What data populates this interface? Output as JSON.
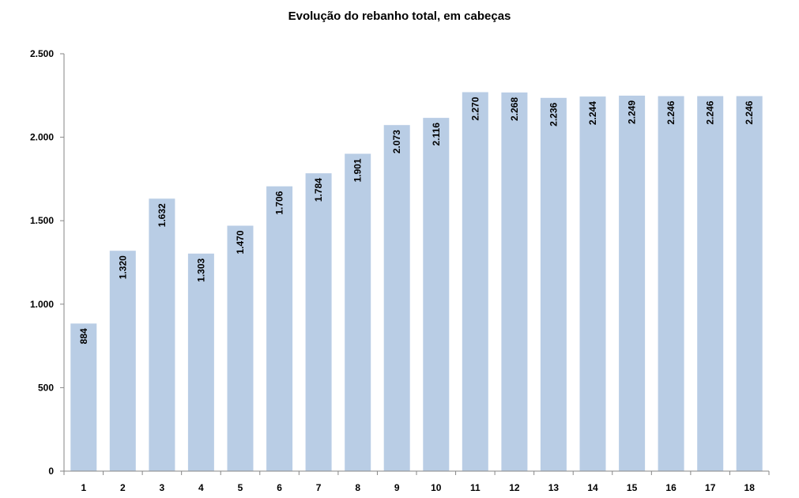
{
  "chart_data": {
    "type": "bar",
    "title": "Evolução do rebanho total, em cabeças",
    "xlabel": "",
    "ylabel": "",
    "categories": [
      "1",
      "2",
      "3",
      "4",
      "5",
      "6",
      "7",
      "8",
      "9",
      "10",
      "11",
      "12",
      "13",
      "14",
      "15",
      "16",
      "17",
      "18"
    ],
    "values": [
      884,
      1320,
      1632,
      1303,
      1470,
      1706,
      1784,
      1901,
      2073,
      2116,
      2270,
      2268,
      2236,
      2244,
      2249,
      2246,
      2246,
      2246
    ],
    "value_labels": [
      "884",
      "1.320",
      "1.632",
      "1.303",
      "1.470",
      "1.706",
      "1.784",
      "1.901",
      "2.073",
      "2.116",
      "2.270",
      "2.268",
      "2.236",
      "2.244",
      "2.249",
      "2.246",
      "2.246",
      "2.246"
    ],
    "ylim": [
      0,
      2500
    ],
    "yticks": [
      0,
      500,
      1000,
      1500,
      2000,
      2500
    ],
    "ytick_labels": [
      "0",
      "500",
      "1.000",
      "1.500",
      "2.000",
      "2.500"
    ],
    "grid": false,
    "legend": "none",
    "bar_color": "#b9cde5",
    "axis_color": "#868686"
  }
}
